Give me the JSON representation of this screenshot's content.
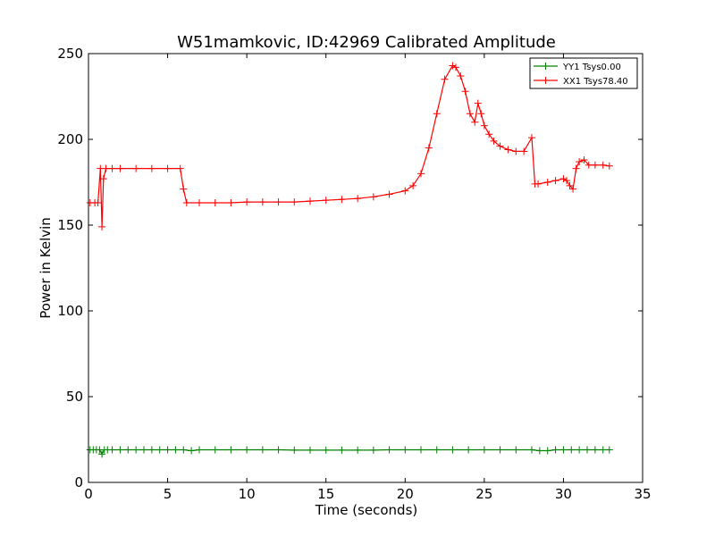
{
  "chart_data": {
    "type": "line",
    "title": "W51mamkovic, ID:42969 Calibrated Amplitude",
    "xlabel": "Time (seconds)",
    "ylabel": "Power in Kelvin",
    "xlim": [
      0,
      35
    ],
    "ylim": [
      0,
      250
    ],
    "xticks": [
      "0",
      "5",
      "10",
      "15",
      "20",
      "25",
      "30",
      "35"
    ],
    "yticks": [
      "0",
      "50",
      "100",
      "150",
      "200",
      "250"
    ],
    "grid": false,
    "legend_position": "top-right",
    "series": [
      {
        "name": "YY1 Tsys0.00",
        "color": "#008000",
        "marker": "+",
        "x": [
          0.1,
          0.3,
          0.5,
          0.7,
          0.85,
          1.0,
          1.2,
          1.5,
          2.0,
          2.5,
          3.0,
          3.5,
          4.0,
          4.5,
          5.0,
          5.5,
          6.0,
          6.5,
          7.0,
          8.0,
          9.0,
          10.0,
          11.0,
          12.0,
          13.0,
          14.0,
          15.0,
          16.0,
          17.0,
          18.0,
          19.0,
          20.0,
          21.0,
          22.0,
          23.0,
          24.0,
          25.0,
          26.0,
          27.0,
          28.0,
          28.5,
          29.0,
          29.5,
          30.0,
          30.5,
          31.0,
          31.5,
          32.0,
          32.5,
          32.9
        ],
        "values": [
          19,
          19,
          19,
          19,
          16.5,
          19,
          19,
          19,
          19,
          19,
          19,
          19,
          19,
          19,
          19,
          19,
          19,
          18.5,
          19,
          19,
          19,
          19,
          19,
          19,
          18.8,
          18.8,
          18.8,
          18.8,
          18.8,
          18.8,
          19,
          19,
          19,
          19,
          19,
          19,
          19,
          19,
          19,
          19,
          18.5,
          18.5,
          19,
          19,
          19,
          19,
          19,
          19,
          19,
          19
        ]
      },
      {
        "name": "XX1 Tsys78.40",
        "color": "#ff0000",
        "marker": "+",
        "x": [
          0.1,
          0.4,
          0.6,
          0.75,
          0.85,
          0.95,
          1.1,
          1.5,
          2.0,
          3.0,
          4.0,
          5.0,
          5.8,
          6.0,
          6.2,
          7.0,
          8.0,
          9.0,
          10.0,
          11.0,
          12.0,
          13.0,
          14.0,
          15.0,
          16.0,
          17.0,
          18.0,
          19.0,
          20.0,
          20.5,
          21.0,
          21.5,
          22.0,
          22.5,
          23.0,
          23.2,
          23.5,
          23.8,
          24.1,
          24.4,
          24.6,
          24.8,
          25.0,
          25.3,
          25.6,
          26.0,
          26.5,
          27.0,
          27.5,
          28.0,
          28.2,
          28.4,
          29.0,
          29.5,
          30.0,
          30.2,
          30.4,
          30.6,
          30.8,
          31.0,
          31.3,
          31.6,
          32.0,
          32.5,
          32.9
        ],
        "values": [
          163,
          163,
          163,
          183,
          149,
          177,
          183,
          183,
          183,
          183,
          183,
          183,
          183,
          171,
          163,
          163,
          163,
          163,
          163.5,
          163.5,
          163.5,
          163.5,
          164,
          164.5,
          165,
          165.5,
          166.5,
          168,
          170,
          173,
          180,
          195,
          215,
          235,
          243,
          242,
          237,
          228,
          215,
          210,
          221,
          215,
          208,
          203,
          199,
          196,
          194,
          193,
          193,
          201,
          174,
          174,
          175,
          176,
          177,
          176,
          173,
          171,
          183,
          187,
          188,
          185,
          185,
          185,
          184.5
        ]
      }
    ]
  }
}
